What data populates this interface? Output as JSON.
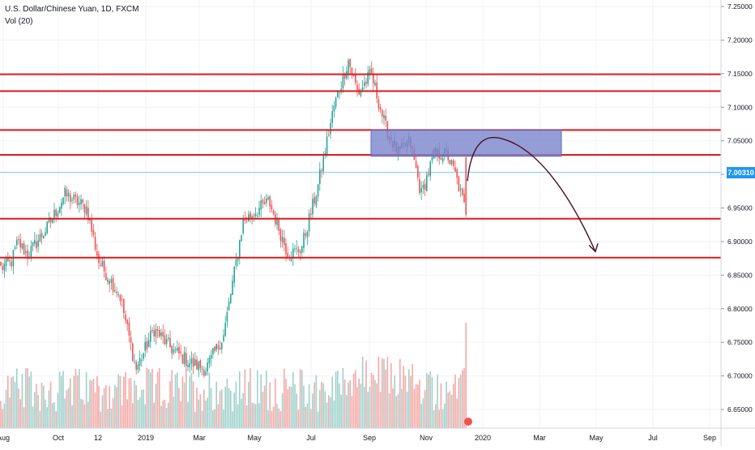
{
  "legend": {
    "symbol_title": "U.S. Dollar/Chinese Yuan, 1D, FXCM",
    "volume_label": "Vol (20)"
  },
  "last_price_label": "7.00310",
  "colors": {
    "up": "#26a69a",
    "down": "#ef5350",
    "up_volume": "#9fd1cb",
    "down_volume": "#f4a9a7",
    "level_line": "#e0191b",
    "current_price_line": "#2196f3",
    "zone_fill": "#7b85cc",
    "forecast_arrow": "#4a0d24"
  },
  "chart_data": {
    "type": "candlestick",
    "title": "U.S. Dollar/Chinese Yuan, 1D, FXCM",
    "ylim": [
      6.61,
      7.26
    ],
    "y_ticks": [
      "7.25000",
      "7.20000",
      "7.15000",
      "7.10000",
      "7.05000",
      "7.00000",
      "6.95000",
      "6.90000",
      "6.85000",
      "6.80000",
      "6.75000",
      "6.70000",
      "6.65000"
    ],
    "x_ticks": [
      "Aug",
      "Oct",
      "12",
      "2019",
      "Mar",
      "May",
      "Jul",
      "Sep",
      "Nov",
      "2020",
      "Mar",
      "May",
      "Jul",
      "Sep"
    ],
    "last_price": 7.0031,
    "horizontal_levels": [
      7.149,
      7.124,
      7.066,
      7.029,
      6.934,
      6.876
    ],
    "resistance_zone": {
      "from": 7.027,
      "to": 7.066,
      "start": "Sep 2019",
      "end": "Feb 2020"
    },
    "forecast": {
      "from": 6.99,
      "peak": 7.055,
      "to": 6.885,
      "note": "projected move downward"
    },
    "series": [
      {
        "name": "Price",
        "anchors_close": [
          6.86,
          6.87,
          6.9,
          6.88,
          6.92,
          6.97,
          6.95,
          6.87,
          6.82,
          6.71,
          6.77,
          6.74,
          6.72,
          6.71,
          6.76,
          6.93,
          6.96,
          6.88,
          6.89,
          6.98,
          7.1,
          7.17,
          7.12,
          7.15,
          7.07,
          7.03,
          7.05,
          6.97,
          7.03,
          7.03,
          7.0,
          6.94
        ]
      },
      {
        "name": "Vol (20)"
      }
    ]
  }
}
